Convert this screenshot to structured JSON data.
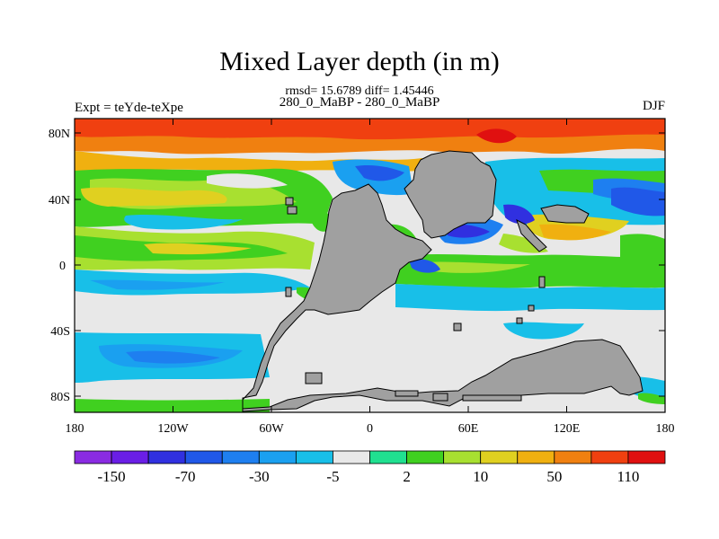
{
  "title": "Mixed Layer depth (in m)",
  "stats": "rmsd= 15.6789 diff= 1.45446",
  "subtitle": "280_0_MaBP - 280_0_MaBP",
  "left_label": "Expt = teYde-teXpe",
  "right_label": "DJF",
  "map": {
    "lat_ticks": [
      "80N",
      "40N",
      "0",
      "40S",
      "80S"
    ],
    "lon_ticks": [
      "180",
      "120W",
      "60W",
      "0",
      "60E",
      "120E",
      "180"
    ],
    "land_color": "#a0a0a0"
  },
  "colorbar": {
    "labels": [
      "-150",
      "-70",
      "-30",
      "-5",
      "2",
      "10",
      "50",
      "110"
    ],
    "colors": [
      "#8a2be2",
      "#6a1ee6",
      "#3030e0",
      "#2058e8",
      "#1e7ff0",
      "#1aa0f0",
      "#18bfe8",
      "#e8e8e8",
      "#20e090",
      "#40d020",
      "#a8e030",
      "#e0d020",
      "#f0b010",
      "#f08010",
      "#f04010",
      "#e01010"
    ]
  }
}
